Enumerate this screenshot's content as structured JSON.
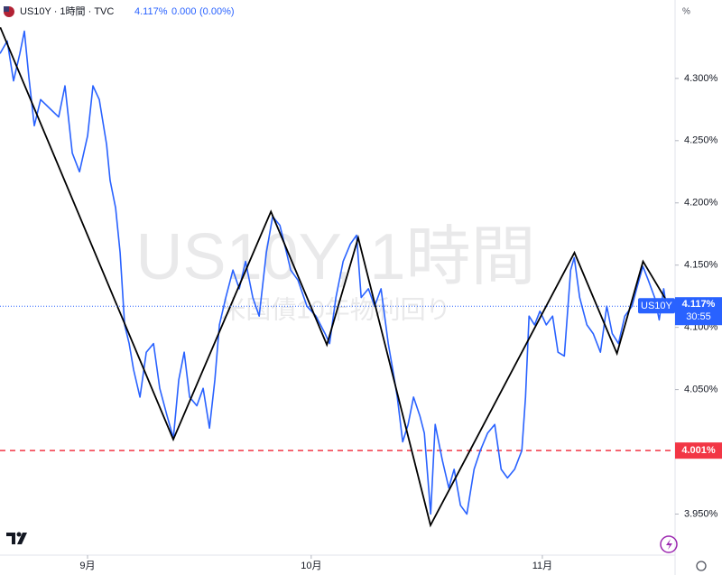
{
  "chart_data": {
    "type": "line",
    "title": "US10Y · 1時間 · TVC",
    "last": {
      "value": 4.117,
      "label": "4.117%"
    },
    "change": "0.000",
    "change_pct": "(0.00%)",
    "y_unit": "%",
    "watermark": [
      "US10Y, 1時間",
      "米国債10年物利回り"
    ],
    "countdown": "30:55",
    "xlim": [
      19.26,
      109.8
    ],
    "xticks": [
      {
        "value": 31,
        "label": "9月"
      },
      {
        "value": 61,
        "label": "10月"
      },
      {
        "value": 92,
        "label": "11月"
      }
    ],
    "ylim": [
      3.917,
      4.363
    ],
    "yticks": [
      {
        "value": 3.95,
        "label": "3.950%"
      },
      {
        "value": 4.05,
        "label": "4.050%"
      },
      {
        "value": 4.1,
        "label": "4.100%"
      },
      {
        "value": 4.15,
        "label": "4.150%"
      },
      {
        "value": 4.2,
        "label": "4.200%"
      },
      {
        "value": 4.25,
        "label": "4.250%"
      },
      {
        "value": 4.3,
        "label": "4.300%"
      }
    ],
    "hline": {
      "value": 4.001,
      "label": "4.001%",
      "color": "#f23645"
    },
    "series": [
      {
        "name": "US10Y",
        "color": "#2962ff",
        "x": [
          19.26,
          20.23,
          21.08,
          21.92,
          22.53,
          23.13,
          23.86,
          24.71,
          25.92,
          27.13,
          27.98,
          28.95,
          29.92,
          31.01,
          31.73,
          32.58,
          33.55,
          34.03,
          34.76,
          35.37,
          35.97,
          36.58,
          37.18,
          38.03,
          38.88,
          39.85,
          40.69,
          41.66,
          42.51,
          43.24,
          43.96,
          44.69,
          45.66,
          46.51,
          47.36,
          48.08,
          48.69,
          49.54,
          50.5,
          51.35,
          52.2,
          53.17,
          54.02,
          54.98,
          55.83,
          56.8,
          57.53,
          58.25,
          59.22,
          60.43,
          61.64,
          62.86,
          63.46,
          64.31,
          65.28,
          66.25,
          67.09,
          67.7,
          68.67,
          69.51,
          70.36,
          71.33,
          71.94,
          72.54,
          73.27,
          74.0,
          74.72,
          75.57,
          76.18,
          77.02,
          77.63,
          78.6,
          79.45,
          80.17,
          81.02,
          81.87,
          82.84,
          83.68,
          84.65,
          85.62,
          86.47,
          87.32,
          88.28,
          89.25,
          89.74,
          90.22,
          90.95,
          91.68,
          92.53,
          93.37,
          94.1,
          94.95,
          95.79,
          96.28,
          97.01,
          97.98,
          98.82,
          99.79,
          100.64,
          101.37,
          102.21,
          103.06,
          104.03,
          104.64,
          105.48,
          106.21,
          107.06,
          107.67,
          108.27,
          108.63
        ],
        "values": [
          4.32,
          4.33,
          4.298,
          4.32,
          4.338,
          4.301,
          4.262,
          4.283,
          4.276,
          4.269,
          4.294,
          4.24,
          4.225,
          4.254,
          4.294,
          4.283,
          4.247,
          4.218,
          4.196,
          4.16,
          4.102,
          4.087,
          4.066,
          4.044,
          4.08,
          4.087,
          4.051,
          4.029,
          4.011,
          4.058,
          4.08,
          4.044,
          4.037,
          4.051,
          4.019,
          4.058,
          4.102,
          4.124,
          4.146,
          4.131,
          4.153,
          4.124,
          4.109,
          4.16,
          4.189,
          4.182,
          4.164,
          4.146,
          4.138,
          4.117,
          4.109,
          4.095,
          4.087,
          4.124,
          4.153,
          4.167,
          4.174,
          4.124,
          4.131,
          4.117,
          4.131,
          4.087,
          4.066,
          4.044,
          4.008,
          4.022,
          4.044,
          4.029,
          4.015,
          3.95,
          4.022,
          3.993,
          3.971,
          3.986,
          3.957,
          3.95,
          3.986,
          4.001,
          4.015,
          4.022,
          3.986,
          3.979,
          3.986,
          4.001,
          4.044,
          4.109,
          4.102,
          4.113,
          4.102,
          4.109,
          4.08,
          4.077,
          4.146,
          4.156,
          4.124,
          4.102,
          4.095,
          4.08,
          4.117,
          4.095,
          4.087,
          4.109,
          4.117,
          4.131,
          4.149,
          4.138,
          4.124,
          4.106,
          4.131,
          4.117
        ]
      }
    ],
    "zigzag": {
      "color": "#000000",
      "x": [
        19.3,
        42.5,
        55.6,
        63.1,
        67.3,
        77.0,
        96.3,
        102.0,
        105.5,
        108.8
      ],
      "values": [
        4.341,
        4.01,
        4.193,
        4.086,
        4.172,
        3.941,
        4.16,
        4.079,
        4.153,
        4.12
      ]
    }
  }
}
